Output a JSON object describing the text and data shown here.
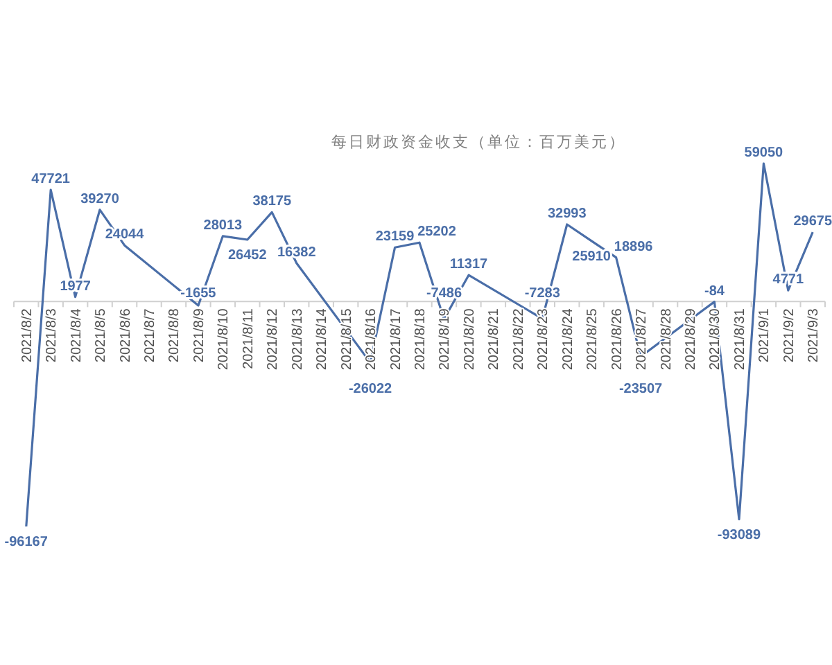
{
  "chart_data": {
    "type": "line",
    "title": "每日财政资金收支（单位：百万美元）",
    "categories": [
      "2021/8/2",
      "2021/8/3",
      "2021/8/4",
      "2021/8/5",
      "2021/8/6",
      "2021/8/7",
      "2021/8/8",
      "2021/8/9",
      "2021/8/10",
      "2021/8/11",
      "2021/8/12",
      "2021/8/13",
      "2021/8/14",
      "2021/8/15",
      "2021/8/16",
      "2021/8/17",
      "2021/8/18",
      "2021/8/19",
      "2021/8/20",
      "2021/8/21",
      "2021/8/22",
      "2021/8/23",
      "2021/8/24",
      "2021/8/25",
      "2021/8/26",
      "2021/8/27",
      "2021/8/28",
      "2021/8/29",
      "2021/8/30",
      "2021/8/31",
      "2021/9/1",
      "2021/9/2",
      "2021/9/3"
    ],
    "series": [
      {
        "color": "#4a6ea8",
        "values": [
          -96167,
          47721,
          1977,
          39270,
          24044,
          null,
          null,
          -1655,
          28013,
          26452,
          38175,
          16382,
          null,
          null,
          -26022,
          23159,
          25202,
          -7486,
          11317,
          null,
          null,
          -7283,
          32993,
          25910,
          18896,
          -23507,
          null,
          null,
          -84,
          -93089,
          59050,
          4771,
          29675
        ]
      }
    ],
    "data_labels": true,
    "marker": "none",
    "line_style": "solid"
  }
}
